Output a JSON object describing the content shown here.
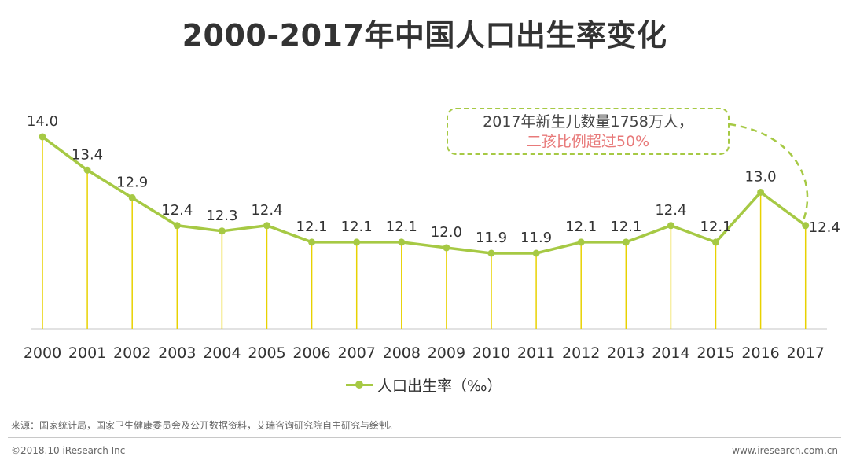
{
  "title": "2000-2017年中国人口出生率变化",
  "chart_data": {
    "type": "line",
    "title": "2000-2017年中国人口出生率变化",
    "categories": [
      "2000",
      "2001",
      "2002",
      "2003",
      "2004",
      "2005",
      "2006",
      "2007",
      "2008",
      "2009",
      "2010",
      "2011",
      "2012",
      "2013",
      "2014",
      "2015",
      "2016",
      "2017"
    ],
    "series": [
      {
        "name": "人口出生率（‰）",
        "values": [
          14.0,
          13.4,
          12.9,
          12.4,
          12.3,
          12.4,
          12.1,
          12.1,
          12.1,
          12.0,
          11.9,
          11.9,
          12.1,
          12.1,
          12.4,
          12.1,
          13.0,
          12.4
        ],
        "labels": [
          "14.0",
          "13.4",
          "12.9",
          "12.4",
          "12.3",
          "12.4",
          "12.1",
          "12.1",
          "12.1",
          "12.0",
          "11.9",
          "11.9",
          "12.1",
          "12.1",
          "12.4",
          "12.1",
          "13.0",
          "12.4"
        ]
      }
    ],
    "legend_position": "bottom",
    "grid": false,
    "color": "#a6c944",
    "drop_line_color": "#e8d200"
  },
  "callout": {
    "line1": "2017年新生儿数量1758万人，",
    "line2": "二孩比例超过50%"
  },
  "source": "来源：国家统计局，国家卫生健康委员会及公开数据资料，艾瑞咨询研究院自主研究与绘制。",
  "copyright": "©2018.10 iResearch Inc",
  "website": "www.iresearch.com.cn"
}
